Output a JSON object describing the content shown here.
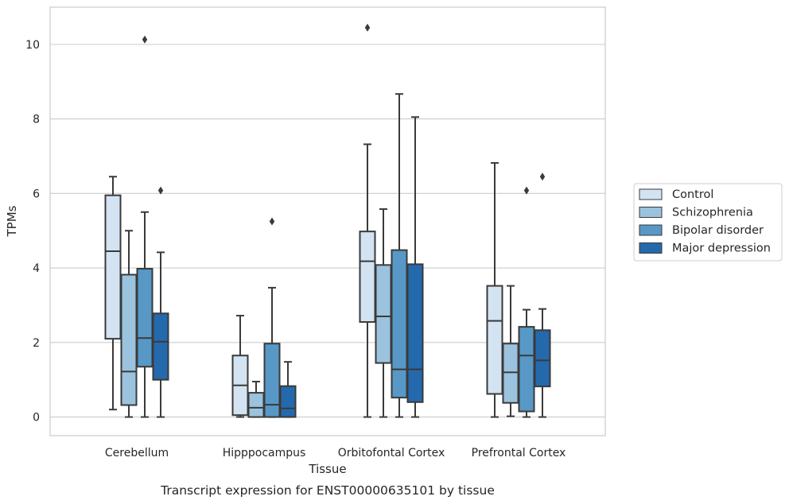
{
  "chart_data": {
    "type": "box",
    "title": "",
    "caption": "Transcript expression for ENST00000635101 by tissue",
    "xlabel": "Tissue",
    "ylabel": "TPMs",
    "ylim": [
      -0.5,
      11.0
    ],
    "yticks": [
      0,
      2,
      4,
      6,
      8,
      10
    ],
    "grid": "horizontal",
    "legend_position": "right",
    "categories": [
      "Cerebellum",
      "Hipppocampus",
      "Orbitofontal Cortex",
      "Prefrontal Cortex"
    ],
    "series": [
      {
        "name": "Control",
        "color": "#d4e3f1",
        "boxes": [
          {
            "whislo": 0.2,
            "q1": 2.1,
            "med": 4.45,
            "q3": 5.95,
            "whishi": 6.45,
            "fliers": []
          },
          {
            "whislo": 0.0,
            "q1": 0.05,
            "med": 0.85,
            "q3": 1.65,
            "whishi": 2.72,
            "fliers": []
          },
          {
            "whislo": 0.0,
            "q1": 2.55,
            "med": 4.18,
            "q3": 4.98,
            "whishi": 7.32,
            "fliers": [
              10.45
            ]
          },
          {
            "whislo": 0.0,
            "q1": 0.62,
            "med": 2.58,
            "q3": 3.52,
            "whishi": 6.82,
            "fliers": []
          }
        ]
      },
      {
        "name": "Schizophrenia",
        "color": "#9bc3de",
        "boxes": [
          {
            "whislo": 0.0,
            "q1": 0.32,
            "med": 1.22,
            "q3": 3.82,
            "whishi": 5.0,
            "fliers": []
          },
          {
            "whislo": 0.0,
            "q1": 0.0,
            "med": 0.25,
            "q3": 0.65,
            "whishi": 0.95,
            "fliers": []
          },
          {
            "whislo": 0.0,
            "q1": 1.45,
            "med": 2.7,
            "q3": 4.08,
            "whishi": 5.58,
            "fliers": []
          },
          {
            "whislo": 0.02,
            "q1": 0.38,
            "med": 1.2,
            "q3": 1.97,
            "whishi": 3.52,
            "fliers": []
          }
        ]
      },
      {
        "name": "Bipolar disorder",
        "color": "#5798c6",
        "boxes": [
          {
            "whislo": 0.0,
            "q1": 1.35,
            "med": 2.12,
            "q3": 3.98,
            "whishi": 5.5,
            "fliers": [
              10.13
            ]
          },
          {
            "whislo": 0.0,
            "q1": 0.0,
            "med": 0.33,
            "q3": 1.97,
            "whishi": 3.47,
            "fliers": [
              5.25
            ]
          },
          {
            "whislo": 0.0,
            "q1": 0.52,
            "med": 1.28,
            "q3": 4.48,
            "whishi": 8.67,
            "fliers": []
          },
          {
            "whislo": 0.0,
            "q1": 0.15,
            "med": 1.65,
            "q3": 2.42,
            "whishi": 2.88,
            "fliers": [
              6.08
            ]
          }
        ]
      },
      {
        "name": "Major depression",
        "color": "#2569ad",
        "boxes": [
          {
            "whislo": 0.0,
            "q1": 1.0,
            "med": 2.02,
            "q3": 2.78,
            "whishi": 4.42,
            "fliers": [
              6.08
            ]
          },
          {
            "whislo": 0.0,
            "q1": 0.0,
            "med": 0.23,
            "q3": 0.83,
            "whishi": 1.48,
            "fliers": []
          },
          {
            "whislo": 0.0,
            "q1": 0.4,
            "med": 1.28,
            "q3": 4.1,
            "whishi": 8.05,
            "fliers": []
          },
          {
            "whislo": 0.0,
            "q1": 0.82,
            "med": 1.52,
            "q3": 2.33,
            "whishi": 2.9,
            "fliers": [
              6.45
            ]
          }
        ]
      }
    ]
  }
}
